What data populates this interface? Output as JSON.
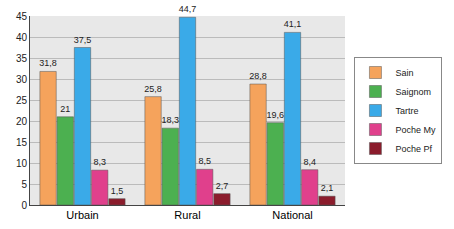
{
  "chart_data": {
    "type": "bar",
    "categories": [
      "Urbain",
      "Rural",
      "National"
    ],
    "series": [
      {
        "name": "Sain",
        "color": "#f5a35c",
        "values": [
          31.8,
          25.8,
          28.8
        ],
        "value_labels": [
          "31,8",
          "25,8",
          "28,8"
        ]
      },
      {
        "name": "Saignom",
        "color": "#4cb050",
        "values": [
          21,
          18.3,
          19.6
        ],
        "value_labels": [
          "21",
          "18,3",
          "19,6"
        ]
      },
      {
        "name": "Tartre",
        "color": "#3aaae8",
        "values": [
          37.5,
          44.7,
          41.1
        ],
        "value_labels": [
          "37,5",
          "44,7",
          "41,1"
        ]
      },
      {
        "name": "Poche My",
        "color": "#e0408c",
        "values": [
          8.3,
          8.5,
          8.4
        ],
        "value_labels": [
          "8,3",
          "8,5",
          "8,4"
        ]
      },
      {
        "name": "Poche Pf",
        "color": "#8b1c2c",
        "values": [
          1.5,
          2.7,
          2.1
        ],
        "value_labels": [
          "1,5",
          "2,7",
          "2,1"
        ]
      }
    ],
    "ylim": [
      0,
      45
    ],
    "yticks": [
      0,
      5,
      10,
      15,
      20,
      25,
      30,
      35,
      40,
      45
    ],
    "grid": true,
    "legend": "right",
    "data_labels": true
  }
}
